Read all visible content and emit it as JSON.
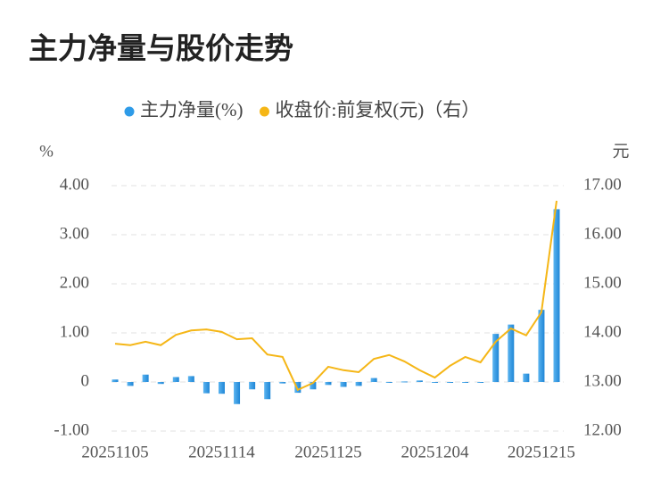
{
  "chart_data": {
    "type": "bar-line",
    "title": "主力净量与股价走势",
    "y_unit": "%",
    "y2_unit": "元",
    "categories": [
      "20251105",
      null,
      null,
      null,
      null,
      null,
      null,
      "20251114",
      null,
      null,
      null,
      null,
      null,
      null,
      "20251125",
      null,
      null,
      null,
      null,
      null,
      null,
      "20251204",
      null,
      null,
      null,
      null,
      null,
      null,
      "20251215",
      null
    ],
    "series": [
      {
        "name": "主力净量(%)",
        "type": "bar",
        "color": "#2e9be8",
        "values": [
          0.05,
          -0.08,
          0.15,
          -0.04,
          0.1,
          0.12,
          -0.23,
          -0.24,
          -0.45,
          -0.15,
          -0.35,
          -0.03,
          -0.22,
          -0.15,
          -0.06,
          -0.1,
          -0.08,
          0.08,
          -0.01,
          0.01,
          0.03,
          -0.01,
          -0.01,
          -0.01,
          -0.01,
          0.98,
          1.17,
          0.17,
          1.47,
          3.52
        ]
      },
      {
        "name": "收盘价:前复权(元)（右）",
        "type": "line",
        "axis": "y2",
        "color": "#f5b616",
        "values": [
          13.78,
          13.75,
          13.82,
          13.75,
          13.96,
          14.05,
          14.07,
          14.02,
          13.87,
          13.89,
          13.56,
          13.51,
          12.84,
          12.98,
          13.31,
          13.24,
          13.2,
          13.47,
          13.55,
          13.42,
          13.24,
          13.09,
          13.33,
          13.51,
          13.4,
          13.82,
          14.09,
          13.95,
          14.42,
          16.69
        ]
      }
    ],
    "ylim": [
      -1,
      4
    ],
    "yticks": [
      {
        "value": -1,
        "label": "-1.00"
      },
      0,
      {
        "value": 1,
        "label": "1.00"
      },
      {
        "value": 2,
        "label": "2.00"
      },
      {
        "value": 3,
        "label": "3.00"
      },
      {
        "value": 4,
        "label": "4.00"
      }
    ],
    "y2lim": [
      12,
      17
    ],
    "y2ticks": [
      {
        "value": 12,
        "label": "12.00"
      },
      {
        "value": 13,
        "label": "13.00"
      },
      {
        "value": 14,
        "label": "14.00"
      },
      {
        "value": 15,
        "label": "15.00"
      },
      {
        "value": 16,
        "label": "16.00"
      },
      {
        "value": 17,
        "label": "17.00"
      }
    ],
    "grid": true
  }
}
